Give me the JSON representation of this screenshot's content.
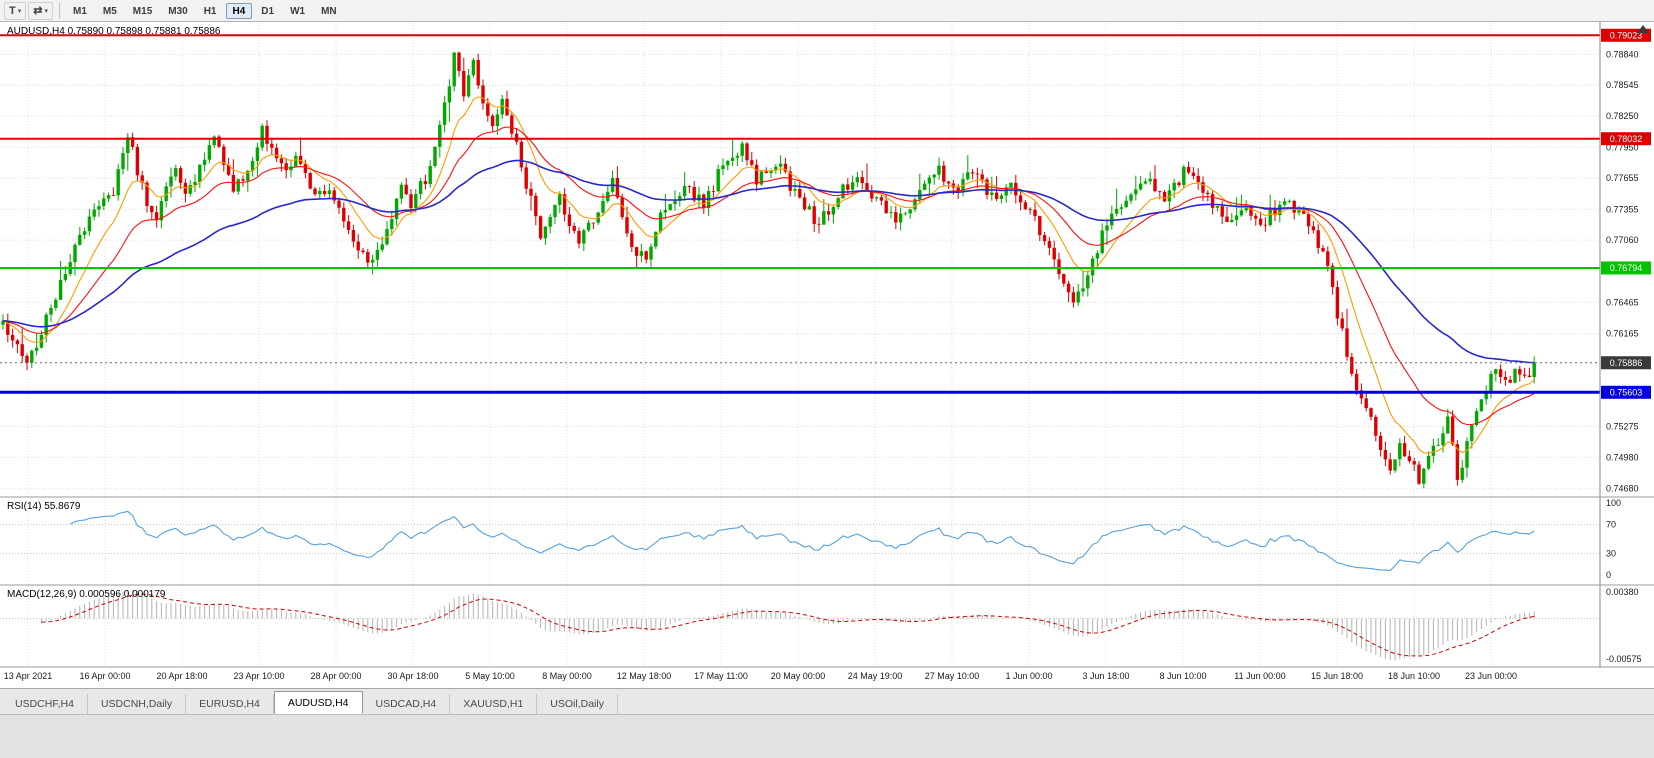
{
  "toolbar": {
    "icon_buttons": [
      {
        "name": "chart-type-button",
        "icon": "chart-type-icon",
        "glyph": "T"
      },
      {
        "name": "cursor-mode-button",
        "icon": "cursor-mode-icon",
        "glyph": "⇄"
      }
    ],
    "caret_glyph": "▾",
    "timeframes": [
      "M1",
      "M5",
      "M15",
      "M30",
      "H1",
      "H4",
      "D1",
      "W1",
      "MN"
    ],
    "active_timeframe": "H4"
  },
  "chart_data": {
    "type": "candlestick",
    "symbol": "AUDUSD",
    "timeframe": "H4",
    "title": "AUDUSD,H4 0.75890 0.75898 0.75881 0.75886",
    "ohlc": {
      "open": 0.7589,
      "high": 0.75898,
      "low": 0.75881,
      "close": 0.75886
    },
    "colors": {
      "up_candle": "#00a800",
      "down_candle": "#dc0000",
      "grid": "#dcdcdc",
      "panel_border": "#9a9a9a",
      "axis_text": "#1a1a1a"
    },
    "price_axis": {
      "min": 0.746,
      "max": 0.7915,
      "labels": [
        "0.78840",
        "0.78545",
        "0.78250",
        "0.77950",
        "0.77655",
        "0.77355",
        "0.77060",
        "0.76465",
        "0.76165",
        "0.75275",
        "0.74980",
        "0.74680"
      ]
    },
    "horizontal_lines": [
      {
        "label": "0.79023",
        "value": 0.79023,
        "color": "#dd0000",
        "width": 2,
        "name": "resistance-line-upper"
      },
      {
        "label": "0.78032",
        "value": 0.78032,
        "color": "#dd0000",
        "width": 2,
        "name": "resistance-line-lower"
      },
      {
        "label": "0.76794",
        "value": 0.76794,
        "color": "#00c400",
        "width": 2,
        "name": "support-line-green"
      },
      {
        "label": "0.75603",
        "value": 0.75603,
        "color": "#0000dd",
        "width": 3,
        "name": "support-line-blue"
      }
    ],
    "current_price": {
      "label": "0.75886",
      "value": 0.75886,
      "badge_color": "#3a3a3a"
    },
    "candles": {
      "count": 320,
      "anchors": [
        [
          0,
          0.7625
        ],
        [
          2,
          0.761
        ],
        [
          5,
          0.759
        ],
        [
          8,
          0.7615
        ],
        [
          11,
          0.7655
        ],
        [
          14,
          0.769
        ],
        [
          17,
          0.7715
        ],
        [
          20,
          0.774
        ],
        [
          23,
          0.7755
        ],
        [
          26,
          0.781
        ],
        [
          28,
          0.7772
        ],
        [
          30,
          0.7742
        ],
        [
          32,
          0.7722
        ],
        [
          34,
          0.7756
        ],
        [
          36,
          0.7772
        ],
        [
          38,
          0.775
        ],
        [
          41,
          0.7772
        ],
        [
          44,
          0.7808
        ],
        [
          46,
          0.778
        ],
        [
          48,
          0.7756
        ],
        [
          51,
          0.777
        ],
        [
          54,
          0.7812
        ],
        [
          56,
          0.7788
        ],
        [
          59,
          0.7772
        ],
        [
          61,
          0.779
        ],
        [
          63,
          0.7772
        ],
        [
          65,
          0.7748
        ],
        [
          68,
          0.776
        ],
        [
          71,
          0.773
        ],
        [
          73,
          0.7708
        ],
        [
          76,
          0.7678
        ],
        [
          79,
          0.77
        ],
        [
          81,
          0.7722
        ],
        [
          83,
          0.7758
        ],
        [
          85,
          0.774
        ],
        [
          87,
          0.7756
        ],
        [
          89,
          0.7776
        ],
        [
          91,
          0.7815
        ],
        [
          93,
          0.786
        ],
        [
          94,
          0.7886
        ],
        [
          96,
          0.7845
        ],
        [
          98,
          0.7872
        ],
        [
          102,
          0.7815
        ],
        [
          104,
          0.7835
        ],
        [
          107,
          0.78
        ],
        [
          109,
          0.776
        ],
        [
          112,
          0.7712
        ],
        [
          116,
          0.7745
        ],
        [
          120,
          0.77
        ],
        [
          124,
          0.7735
        ],
        [
          127,
          0.776
        ],
        [
          131,
          0.77
        ],
        [
          134,
          0.7688
        ],
        [
          137,
          0.7735
        ],
        [
          142,
          0.7758
        ],
        [
          146,
          0.7738
        ],
        [
          150,
          0.778
        ],
        [
          154,
          0.7795
        ],
        [
          157,
          0.7765
        ],
        [
          161,
          0.778
        ],
        [
          166,
          0.7742
        ],
        [
          170,
          0.7722
        ],
        [
          174,
          0.7752
        ],
        [
          178,
          0.777
        ],
        [
          182,
          0.7745
        ],
        [
          186,
          0.7722
        ],
        [
          190,
          0.7745
        ],
        [
          195,
          0.7772
        ],
        [
          198,
          0.7752
        ],
        [
          202,
          0.7774
        ],
        [
          206,
          0.7745
        ],
        [
          210,
          0.7756
        ],
        [
          214,
          0.773
        ],
        [
          218,
          0.77
        ],
        [
          223,
          0.7645
        ],
        [
          227,
          0.7688
        ],
        [
          230,
          0.772
        ],
        [
          234,
          0.7745
        ],
        [
          238,
          0.7762
        ],
        [
          242,
          0.775
        ],
        [
          246,
          0.777
        ],
        [
          251,
          0.7752
        ],
        [
          255,
          0.7718
        ],
        [
          259,
          0.774
        ],
        [
          262,
          0.7722
        ],
        [
          266,
          0.7738
        ],
        [
          270,
          0.7736
        ],
        [
          273,
          0.7712
        ],
        [
          275,
          0.769
        ],
        [
          277,
          0.766
        ],
        [
          279,
          0.7615
        ],
        [
          281,
          0.7576
        ],
        [
          283,
          0.7548
        ],
        [
          285,
          0.753
        ],
        [
          287,
          0.75
        ],
        [
          289,
          0.7482
        ],
        [
          291,
          0.7512
        ],
        [
          293,
          0.7495
        ],
        [
          295,
          0.7478
        ],
        [
          297,
          0.7495
        ],
        [
          299,
          0.7515
        ],
        [
          301,
          0.7535
        ],
        [
          303,
          0.7482
        ],
        [
          305,
          0.7508
        ],
        [
          307,
          0.7545
        ],
        [
          309,
          0.7568
        ],
        [
          311,
          0.7588
        ],
        [
          313,
          0.757
        ],
        [
          315,
          0.7582
        ],
        [
          317,
          0.7574
        ],
        [
          319,
          0.75886
        ]
      ]
    },
    "moving_averages": [
      {
        "name": "ma-fast-line",
        "period": 10,
        "color": "#ff9c00"
      },
      {
        "name": "ma-medium-line",
        "period": 24,
        "color": "#ff1010"
      },
      {
        "name": "ma-slow-line",
        "period": 60,
        "color": "#2828c8"
      }
    ],
    "rsi": {
      "label": "RSI(14) 55.8679",
      "period": 14,
      "last_value": 55.8679,
      "color": "#58a0d8",
      "axis_labels": [
        "100",
        "70",
        "30",
        "0"
      ],
      "levels": [
        70,
        30
      ]
    },
    "macd": {
      "label": "MACD(12,26,9) 0.000596 0.000179",
      "fast": 12,
      "slow": 26,
      "signal_period": 9,
      "values": [
        0.000596,
        0.000179
      ],
      "histogram_color": "#b0b0b0",
      "signal_color": "#d00000",
      "axis_labels": [
        {
          "text": "0.00380",
          "value": 0.0038
        },
        {
          "text": "-0.00575",
          "value": -0.00575
        }
      ]
    },
    "time_labels": [
      "13 Apr 2021",
      "16 Apr 00:00",
      "20 Apr 18:00",
      "23 Apr 10:00",
      "28 Apr 00:00",
      "30 Apr 18:00",
      "5 May 10:00",
      "8 May 00:00",
      "12 May 18:00",
      "17 May 11:00",
      "20 May 00:00",
      "24 May 19:00",
      "27 May 10:00",
      "1 Jun 00:00",
      "3 Jun 18:00",
      "8 Jun 10:00",
      "11 Jun 00:00",
      "15 Jun 18:00",
      "18 Jun 10:00",
      "23 Jun 00:00"
    ]
  },
  "tabs": {
    "items": [
      "USDCHF,H4",
      "USDCNH,Daily",
      "EURUSD,H4",
      "AUDUSD,H4",
      "USDCAD,H4",
      "XAUUSD,H1",
      "USOil,Daily"
    ],
    "active": "AUDUSD,H4"
  }
}
